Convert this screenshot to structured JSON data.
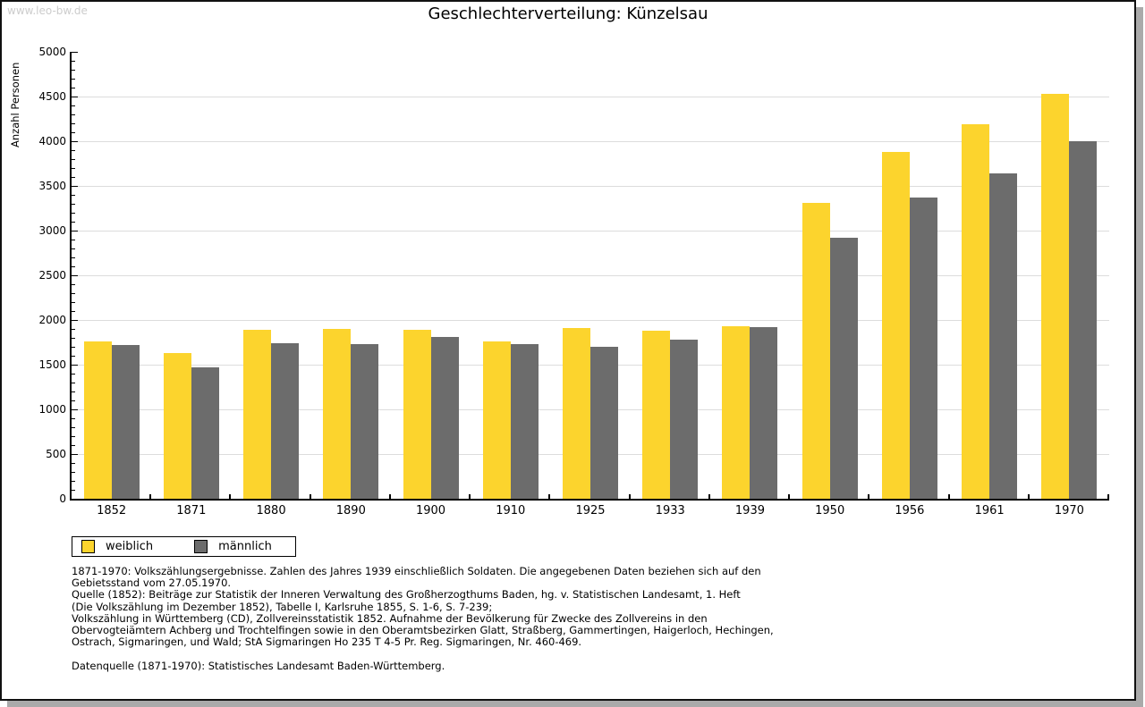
{
  "watermark": "www.leo-bw.de",
  "chart_data": {
    "type": "bar",
    "title": "Geschlechterverteilung: Künzelsau",
    "xlabel": "",
    "ylabel": "Anzahl Personen",
    "ylim": [
      0,
      5000
    ],
    "ytick_step": 500,
    "minor_tick_step": 100,
    "grid": "horizontal",
    "gridline_color": "#dcdcdc",
    "legend_position": "bottom-left",
    "categories": [
      "1852",
      "1871",
      "1880",
      "1890",
      "1900",
      "1910",
      "1925",
      "1933",
      "1939",
      "1950",
      "1956",
      "1961",
      "1970"
    ],
    "series": [
      {
        "name": "weiblich",
        "color": "#FCD42D",
        "values": [
          1760,
          1630,
          1895,
          1905,
          1895,
          1765,
          1915,
          1880,
          1935,
          3315,
          3885,
          4195,
          4535
        ]
      },
      {
        "name": "männlich",
        "color": "#6C6C6C",
        "values": [
          1720,
          1475,
          1745,
          1735,
          1815,
          1735,
          1700,
          1785,
          1920,
          2925,
          3370,
          3640,
          4000
        ]
      }
    ]
  },
  "footnote": {
    "lines": [
      "1871-1970: Volkszählungsergebnisse. Zahlen des Jahres 1939 einschließlich Soldaten. Die angegebenen Daten beziehen sich auf den",
      "Gebietsstand vom 27.05.1970.",
      "Quelle (1852): Beiträge zur Statistik der Inneren Verwaltung des Großherzogthums Baden, hg. v. Statistischen Landesamt, 1. Heft",
      "(Die Volkszählung im Dezember 1852), Tabelle I, Karlsruhe 1855, S. 1-6, S. 7-239;",
      "Volkszählung in Württemberg (CD), Zollvereinsstatistik 1852. Aufnahme der Bevölkerung für Zwecke des Zollvereins in den",
      "Obervogteiämtern Achberg und Trochtelfingen sowie in den Oberamtsbezirken Glatt, Straßberg, Gammertingen, Haigerloch, Hechingen,",
      "Ostrach, Sigmaringen, und Wald; StA Sigmaringen Ho 235 T 4-5 Pr. Reg. Sigmaringen, Nr. 460-469."
    ],
    "datasource": "Datenquelle (1871-1970): Statistisches Landesamt Baden-Württemberg."
  }
}
